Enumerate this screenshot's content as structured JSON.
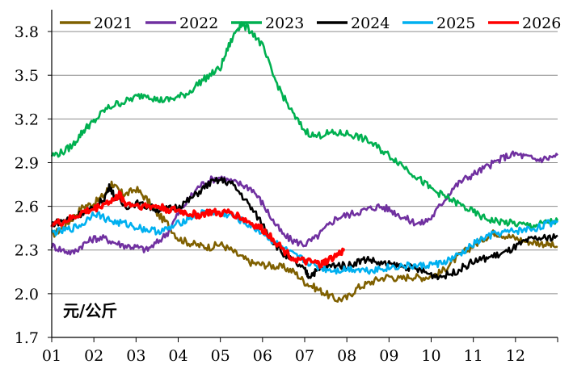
{
  "chart_data": {
    "type": "line",
    "title": "",
    "xlabel": "",
    "ylabel": "元/公斤",
    "unit_label": "元/公斤",
    "x_ticks": [
      "01",
      "02",
      "03",
      "04",
      "05",
      "06",
      "07",
      "08",
      "09",
      "10",
      "11",
      "12"
    ],
    "y_ticks": [
      "1.7",
      "2.0",
      "2.3",
      "2.6",
      "2.9",
      "3.2",
      "3.5",
      "3.8"
    ],
    "ylim": [
      1.7,
      3.95
    ],
    "xlim": [
      1,
      13
    ],
    "grid": "horizontal",
    "legend_position": "top",
    "series": [
      {
        "name": "2021",
        "color": "#7f6000",
        "x": [
          1,
          1.25,
          1.5,
          1.75,
          2,
          2.25,
          2.42,
          2.6,
          2.75,
          3,
          3.25,
          3.5,
          3.75,
          4,
          4.25,
          4.5,
          4.75,
          5,
          5.25,
          5.5,
          5.75,
          6,
          6.25,
          6.5,
          6.75,
          7,
          7.25,
          7.5,
          7.75,
          8,
          8.25,
          8.5,
          8.75,
          9,
          9.25,
          9.5,
          9.75,
          10,
          10.25,
          10.5,
          10.75,
          11,
          11.25,
          11.5,
          11.75,
          12,
          12.25,
          12.5,
          12.75,
          13
        ],
        "values": [
          2.4,
          2.45,
          2.52,
          2.6,
          2.62,
          2.68,
          2.76,
          2.7,
          2.68,
          2.72,
          2.65,
          2.55,
          2.48,
          2.38,
          2.35,
          2.33,
          2.32,
          2.34,
          2.3,
          2.25,
          2.21,
          2.2,
          2.19,
          2.18,
          2.15,
          2.08,
          2.04,
          2.0,
          1.96,
          1.97,
          2.04,
          2.07,
          2.1,
          2.12,
          2.1,
          2.12,
          2.11,
          2.12,
          2.15,
          2.22,
          2.28,
          2.33,
          2.38,
          2.42,
          2.4,
          2.38,
          2.36,
          2.35,
          2.34,
          2.32
        ]
      },
      {
        "name": "2022",
        "color": "#7030a0",
        "x": [
          1,
          1.25,
          1.5,
          1.75,
          2,
          2.25,
          2.5,
          2.75,
          3,
          3.25,
          3.5,
          3.75,
          4,
          4.25,
          4.5,
          4.75,
          5,
          5.25,
          5.5,
          5.75,
          6,
          6.25,
          6.5,
          6.75,
          7,
          7.25,
          7.5,
          7.75,
          8,
          8.25,
          8.5,
          8.75,
          9,
          9.25,
          9.5,
          9.75,
          10,
          10.25,
          10.5,
          10.75,
          11,
          11.25,
          11.5,
          11.75,
          12,
          12.25,
          12.5,
          12.75,
          13
        ],
        "values": [
          2.33,
          2.3,
          2.28,
          2.34,
          2.38,
          2.38,
          2.35,
          2.33,
          2.32,
          2.3,
          2.35,
          2.42,
          2.55,
          2.65,
          2.74,
          2.78,
          2.8,
          2.77,
          2.75,
          2.72,
          2.62,
          2.5,
          2.4,
          2.36,
          2.34,
          2.38,
          2.45,
          2.52,
          2.54,
          2.56,
          2.58,
          2.6,
          2.58,
          2.54,
          2.5,
          2.48,
          2.52,
          2.62,
          2.72,
          2.78,
          2.82,
          2.86,
          2.9,
          2.94,
          2.96,
          2.94,
          2.92,
          2.93,
          2.95
        ]
      },
      {
        "name": "2023",
        "color": "#00b050",
        "x": [
          1,
          1.25,
          1.5,
          1.7,
          1.85,
          2,
          2.25,
          2.5,
          2.75,
          3,
          3.25,
          3.5,
          3.75,
          4,
          4.25,
          4.5,
          4.75,
          5,
          5.2,
          5.4,
          5.5,
          5.75,
          6,
          6.25,
          6.5,
          6.75,
          7,
          7.25,
          7.5,
          7.75,
          8,
          8.25,
          8.5,
          8.75,
          9,
          9.25,
          9.5,
          9.75,
          10,
          10.25,
          10.5,
          10.75,
          11,
          11.25,
          11.5,
          11.75,
          12,
          12.25,
          12.5,
          12.75,
          13
        ],
        "values": [
          2.95,
          2.97,
          3.02,
          3.1,
          3.15,
          3.18,
          3.26,
          3.3,
          3.32,
          3.35,
          3.37,
          3.33,
          3.33,
          3.35,
          3.38,
          3.45,
          3.5,
          3.55,
          3.7,
          3.82,
          3.85,
          3.8,
          3.7,
          3.5,
          3.35,
          3.22,
          3.12,
          3.08,
          3.1,
          3.1,
          3.1,
          3.08,
          3.05,
          3.0,
          2.95,
          2.9,
          2.84,
          2.78,
          2.72,
          2.68,
          2.64,
          2.6,
          2.56,
          2.52,
          2.5,
          2.49,
          2.48,
          2.47,
          2.47,
          2.49,
          2.5
        ]
      },
      {
        "name": "2024",
        "color": "#000000",
        "x": [
          1,
          1.25,
          1.5,
          1.75,
          2,
          2.25,
          2.38,
          2.5,
          2.75,
          3,
          3.25,
          3.5,
          3.75,
          4,
          4.25,
          4.5,
          4.75,
          5,
          5.25,
          5.5,
          5.75,
          6,
          6.25,
          6.5,
          6.75,
          7,
          7.1,
          7.25,
          7.5,
          7.75,
          8,
          8.25,
          8.5,
          8.75,
          9,
          9.25,
          9.5,
          9.75,
          10,
          10.25,
          10.5,
          10.75,
          11,
          11.25,
          11.5,
          11.75,
          12,
          12.25,
          12.5,
          12.75,
          13
        ],
        "values": [
          2.48,
          2.5,
          2.52,
          2.56,
          2.58,
          2.66,
          2.74,
          2.66,
          2.6,
          2.62,
          2.6,
          2.58,
          2.58,
          2.6,
          2.64,
          2.7,
          2.76,
          2.78,
          2.76,
          2.68,
          2.58,
          2.48,
          2.36,
          2.27,
          2.22,
          2.16,
          2.12,
          2.15,
          2.18,
          2.2,
          2.19,
          2.22,
          2.24,
          2.21,
          2.2,
          2.19,
          2.18,
          2.16,
          2.13,
          2.12,
          2.14,
          2.18,
          2.22,
          2.24,
          2.26,
          2.28,
          2.32,
          2.36,
          2.38,
          2.38,
          2.4
        ]
      },
      {
        "name": "2025",
        "color": "#00b0f0",
        "x": [
          1,
          1.25,
          1.5,
          1.75,
          2,
          2.25,
          2.5,
          2.75,
          3,
          3.25,
          3.5,
          3.75,
          4,
          4.25,
          4.5,
          4.75,
          5,
          5.25,
          5.5,
          5.75,
          6,
          6.25,
          6.5,
          6.75,
          7,
          7.25,
          7.5,
          7.75,
          8,
          8.25,
          8.5,
          8.75,
          9,
          9.25,
          9.5,
          9.75,
          10,
          10.25,
          10.5,
          10.75,
          11,
          11.25,
          11.5,
          11.75,
          12,
          12.25,
          12.5,
          12.75,
          13
        ],
        "values": [
          2.42,
          2.43,
          2.45,
          2.48,
          2.56,
          2.52,
          2.49,
          2.48,
          2.46,
          2.44,
          2.43,
          2.44,
          2.48,
          2.52,
          2.55,
          2.56,
          2.55,
          2.54,
          2.5,
          2.46,
          2.42,
          2.36,
          2.31,
          2.26,
          2.23,
          2.19,
          2.17,
          2.16,
          2.17,
          2.17,
          2.16,
          2.17,
          2.18,
          2.19,
          2.19,
          2.19,
          2.2,
          2.21,
          2.24,
          2.28,
          2.34,
          2.38,
          2.41,
          2.42,
          2.43,
          2.44,
          2.45,
          2.48,
          2.5
        ]
      },
      {
        "name": "2026",
        "color": "#ff0000",
        "x": [
          1,
          1.25,
          1.5,
          1.75,
          2,
          2.25,
          2.5,
          2.62,
          2.75,
          3,
          3.25,
          3.5,
          3.75,
          4,
          4.25,
          4.5,
          4.75,
          5,
          5.25,
          5.5,
          5.75,
          6,
          6.25,
          6.5,
          6.75,
          7,
          7.25,
          7.4,
          7.5,
          7.75,
          7.95
        ],
        "values": [
          2.48,
          2.49,
          2.52,
          2.56,
          2.58,
          2.62,
          2.65,
          2.68,
          2.62,
          2.61,
          2.6,
          2.6,
          2.58,
          2.57,
          2.55,
          2.54,
          2.56,
          2.55,
          2.56,
          2.52,
          2.48,
          2.44,
          2.38,
          2.3,
          2.24,
          2.22,
          2.21,
          2.2,
          2.22,
          2.26,
          2.3
        ]
      }
    ]
  }
}
